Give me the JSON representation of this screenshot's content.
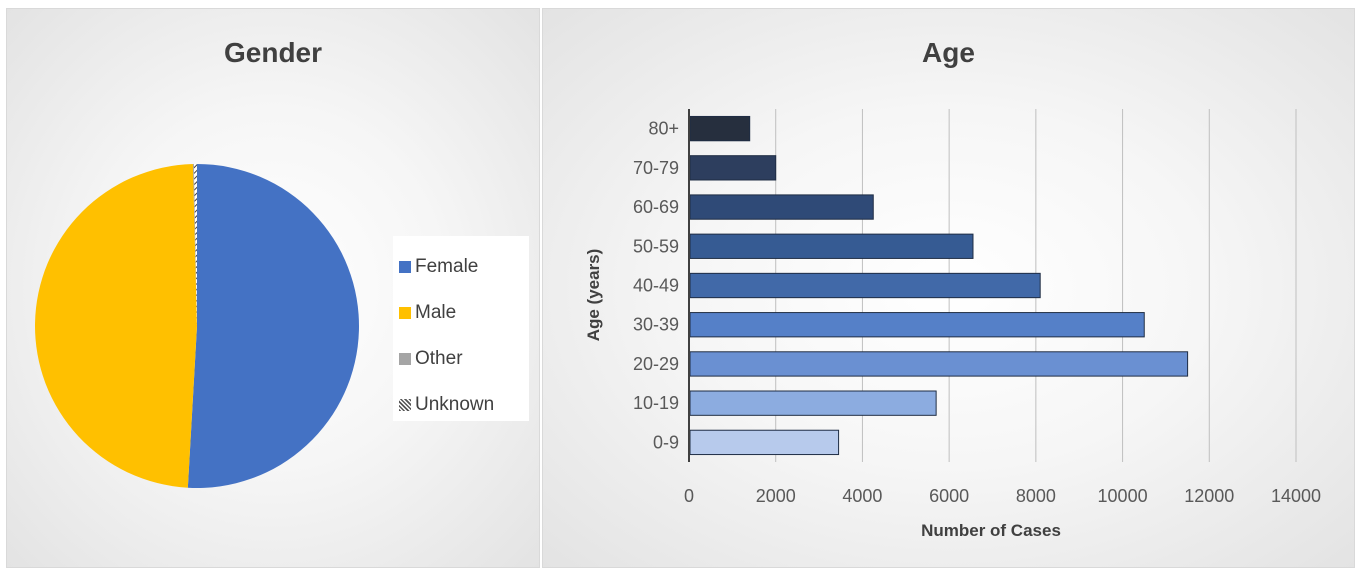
{
  "chart_data": [
    {
      "type": "pie",
      "title": "Gender",
      "categories": [
        "Female",
        "Male",
        "Other",
        "Unknown"
      ],
      "values": [
        50.9,
        48.7,
        0.1,
        0.3
      ],
      "colors": [
        "#4472C4",
        "#FFC000",
        "#A5A5A5",
        "hatched"
      ],
      "legend": "right"
    },
    {
      "type": "bar",
      "orientation": "horizontal",
      "title": "Age",
      "categories": [
        "80+",
        "70-79",
        "60-69",
        "50-59",
        "40-49",
        "30-39",
        "20-29",
        "10-19",
        "0-9"
      ],
      "values": [
        1400,
        2000,
        4250,
        6550,
        8100,
        10500,
        11500,
        5700,
        3450
      ],
      "colors": [
        "#262F3E",
        "#2D3E5E",
        "#2F4A77",
        "#365B93",
        "#4169A8",
        "#5580C8",
        "#6A90D2",
        "#8CACE0",
        "#B7CAEC"
      ],
      "xlabel": "Number of Cases",
      "ylabel": "Age (years)",
      "xticks": [
        "0",
        "2000",
        "4000",
        "6000",
        "8000",
        "10000",
        "12000",
        "14000"
      ],
      "xlim": [
        0,
        14000
      ],
      "grid": true
    }
  ]
}
